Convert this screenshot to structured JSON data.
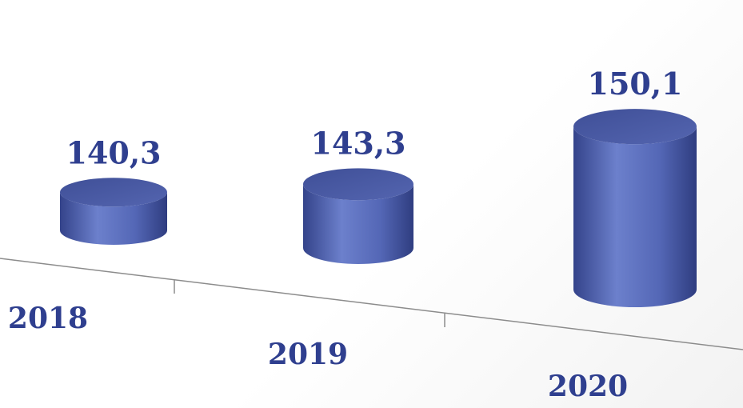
{
  "chart_data": {
    "type": "bar",
    "categories": [
      "2018",
      "2019",
      "2020"
    ],
    "values": [
      140.3,
      143.3,
      150.1
    ],
    "value_labels": [
      "140,3",
      "143,3",
      "150,1"
    ],
    "title": "",
    "xlabel": "",
    "ylabel": "",
    "ylim": [
      135,
      152
    ],
    "grid": false,
    "legend": "none",
    "bar_shape": "cylinder",
    "colors": {
      "bar": "#5a6ebd",
      "bar_dark": "#34438a",
      "bar_top": "#46569f",
      "label": "#2f3f8f",
      "axis": "#8c8c8c"
    }
  }
}
